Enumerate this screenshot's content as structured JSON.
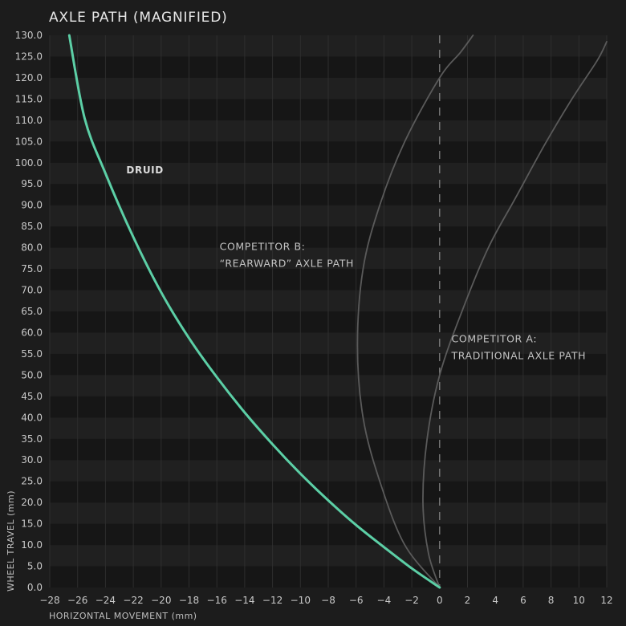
{
  "chart_data": {
    "type": "line",
    "title": "AXLE PATH (MAGNIFIED)",
    "xlabel": "HORIZONTAL MOVEMENT (mm)",
    "ylabel": "WHEEL TRAVEL (mm)",
    "xlim": [
      -28,
      12
    ],
    "ylim": [
      0,
      130
    ],
    "xticks": [
      "−28",
      "−26",
      "−24",
      "−22",
      "−20",
      "−18",
      "−16",
      "−14",
      "−12",
      "−10",
      "−8",
      "−6",
      "−4",
      "−2",
      "0",
      "2",
      "4",
      "6",
      "8",
      "10",
      "12"
    ],
    "yticks": [
      "0.0",
      "5.0",
      "10.0",
      "15.0",
      "20.0",
      "25.0",
      "30.0",
      "35.0",
      "40.0",
      "45.0",
      "50.0",
      "55.0",
      "60.0",
      "65.0",
      "70.0",
      "75.0",
      "80.0",
      "85.0",
      "90.0",
      "95.0",
      "100.0",
      "105.0",
      "110.0",
      "115.0",
      "120.0",
      "125.0",
      "130.0"
    ],
    "grid": true,
    "colors": {
      "druid": "#5ccfa6",
      "competitor": "#5a5a5a",
      "zero_line": "#8a8a8a"
    },
    "series": [
      {
        "name": "DRUID",
        "x": [
          0,
          -2,
          -4,
          -6,
          -8,
          -10,
          -12,
          -14,
          -16,
          -18,
          -20,
          -22,
          -24,
          -25.5,
          -26.6
        ],
        "y": [
          0,
          4.5,
          9.5,
          14.7,
          20.5,
          26.8,
          33.7,
          41.2,
          49.5,
          58.7,
          69.5,
          82.5,
          97.5,
          110.5,
          130
        ]
      },
      {
        "name": "COMPETITOR B: “REARWARD” AXLE PATH",
        "x": [
          0,
          -2.5,
          -4.3,
          -5.5,
          -5.9,
          -5.5,
          -4.3,
          -2.5,
          0,
          1.5,
          2.4
        ],
        "y": [
          0,
          10,
          25,
          40,
          57,
          75,
          90,
          105,
          120,
          126,
          130
        ]
      },
      {
        "name": "COMPETITOR A: TRADITIONAL AXLE PATH",
        "x": [
          0,
          -0.8,
          -1.2,
          -0.9,
          0,
          1.6,
          3.5,
          5.5,
          7.5,
          9.5,
          11.3,
          12
        ],
        "y": [
          0,
          8,
          20,
          35,
          50,
          65,
          80,
          92,
          104,
          115,
          124,
          128.5
        ]
      }
    ],
    "annotations": [
      {
        "text": "DRUID",
        "x": -22.5,
        "y": 97.5,
        "bold": true
      },
      {
        "text": "COMPETITOR B:",
        "x": -15.8,
        "y": 79.5
      },
      {
        "text": "“REARWARD” AXLE PATH",
        "x": -15.8,
        "y": 75.5
      },
      {
        "text": "COMPETITOR A:",
        "x": 0.85,
        "y": 57.7
      },
      {
        "text": "TRADITIONAL AXLE PATH",
        "x": 0.85,
        "y": 53.8
      }
    ]
  }
}
